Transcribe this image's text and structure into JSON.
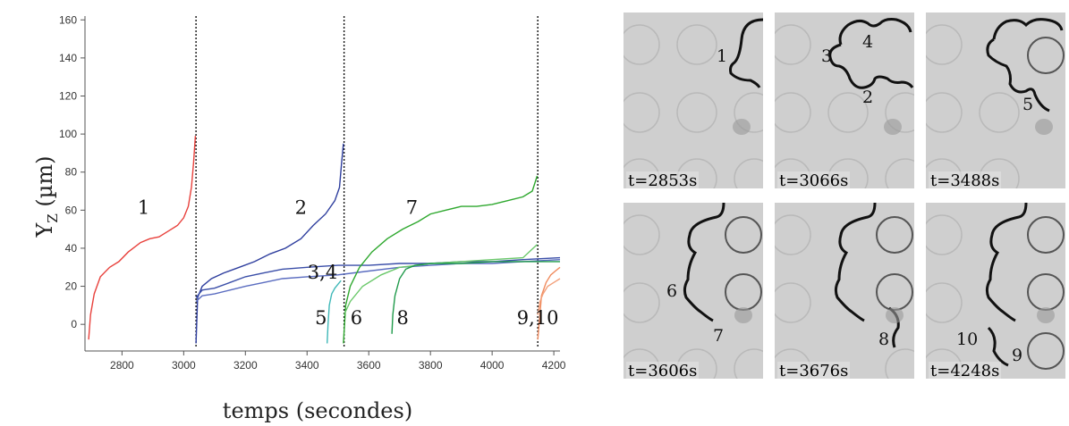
{
  "chart_data": {
    "type": "line",
    "xlabel": "temps (secondes)",
    "ylabel": "Y",
    "ylabel_sub": "Z",
    "ylabel_unit": "(µm)",
    "xlim": [
      2680,
      4220
    ],
    "ylim": [
      -14,
      162
    ],
    "xticks": [
      2800,
      3000,
      3200,
      3400,
      3600,
      3800,
      4000,
      4200
    ],
    "yticks": [
      0,
      20,
      40,
      60,
      80,
      100,
      120,
      140,
      160
    ],
    "grid": false,
    "vlines": [
      3040,
      3520,
      4148
    ],
    "series": [
      {
        "color": "#e8413c",
        "x": [
          2692,
          2698,
          2710,
          2730,
          2760,
          2790,
          2820,
          2860,
          2890,
          2920,
          2950,
          2980,
          3000,
          3015,
          3025,
          3032,
          3038
        ],
        "y": [
          -8,
          5,
          16,
          25,
          30,
          33,
          38,
          43,
          45,
          46,
          49,
          52,
          56,
          62,
          72,
          85,
          99
        ]
      },
      {
        "color": "#2e3e9e",
        "x": [
          3040,
          3045,
          3060,
          3090,
          3130,
          3180,
          3230,
          3280,
          3330,
          3380,
          3420,
          3460,
          3490,
          3505,
          3512,
          3518
        ],
        "y": [
          -10,
          14,
          20,
          24,
          27,
          30,
          33,
          37,
          40,
          45,
          52,
          58,
          65,
          72,
          85,
          95
        ]
      },
      {
        "color": "#3a4ea8",
        "x": [
          3040,
          3060,
          3100,
          3150,
          3200,
          3260,
          3320,
          3400,
          3500,
          3600,
          3700,
          3800,
          3900,
          4000,
          4100,
          4220
        ],
        "y": [
          14,
          18,
          19,
          22,
          25,
          27,
          29,
          30,
          31,
          31,
          32,
          32,
          33,
          33,
          34,
          35
        ]
      },
      {
        "color": "#5a6cc0",
        "x": [
          3040,
          3060,
          3100,
          3150,
          3200,
          3260,
          3320,
          3400,
          3500,
          3600,
          3700,
          3800,
          3900,
          4000,
          4100,
          4220
        ],
        "y": [
          12,
          15,
          16,
          18,
          20,
          22,
          24,
          25,
          26,
          28,
          30,
          31,
          32,
          32,
          33,
          34
        ]
      },
      {
        "color": "#3fb8b8",
        "x": [
          3465,
          3468,
          3472,
          3480,
          3490,
          3500,
          3510
        ],
        "y": [
          -10,
          0,
          10,
          16,
          19,
          21,
          23
        ]
      },
      {
        "color": "#2ea82e",
        "x": [
          3518,
          3525,
          3540,
          3570,
          3610,
          3660,
          3710,
          3760,
          3800,
          3850,
          3900,
          3950,
          4000,
          4050,
          4100,
          4130,
          4146
        ],
        "y": [
          -10,
          10,
          20,
          30,
          38,
          45,
          50,
          54,
          58,
          60,
          62,
          62,
          63,
          65,
          67,
          70,
          78
        ]
      },
      {
        "color": "#6ac86a",
        "x": [
          3520,
          3540,
          3580,
          3640,
          3700,
          3760,
          3800,
          3900,
          4000,
          4100,
          4146
        ],
        "y": [
          5,
          12,
          20,
          26,
          30,
          31,
          32,
          33,
          34,
          35,
          42
        ]
      },
      {
        "color": "#1f9a4a",
        "x": [
          3675,
          3678,
          3685,
          3700,
          3720,
          3750,
          3800,
          3900,
          4000,
          4100,
          4220
        ],
        "y": [
          -5,
          5,
          15,
          24,
          29,
          31,
          32,
          32,
          33,
          33,
          33
        ]
      },
      {
        "color": "#f08a5d",
        "x": [
          4148,
          4152,
          4160,
          4175,
          4190,
          4205,
          4220
        ],
        "y": [
          -8,
          0,
          15,
          22,
          26,
          28,
          30
        ]
      },
      {
        "color": "#f3a07a",
        "x": [
          4148,
          4155,
          4165,
          4180,
          4200,
          4220
        ],
        "y": [
          5,
          12,
          16,
          20,
          22,
          24
        ]
      }
    ],
    "annotations": [
      {
        "text": "1",
        "x": 2870,
        "y": 58
      },
      {
        "text": "2",
        "x": 3380,
        "y": 58
      },
      {
        "text": "7",
        "x": 3740,
        "y": 58
      },
      {
        "text": "3,4",
        "x": 3450,
        "y": 24
      },
      {
        "text": "5",
        "x": 3445,
        "y": 0
      },
      {
        "text": "6",
        "x": 3560,
        "y": 0
      },
      {
        "text": "8",
        "x": 3710,
        "y": 0
      },
      {
        "text": "9,10",
        "x": 4148,
        "y": 0
      }
    ]
  },
  "panels": [
    {
      "time": "t=2853s",
      "labels": [
        "1"
      ]
    },
    {
      "time": "t=3066s",
      "labels": [
        "3",
        "4",
        "2"
      ]
    },
    {
      "time": "t=3488s",
      "labels": [
        "5"
      ]
    },
    {
      "time": "t=3606s",
      "labels": [
        "6",
        "7"
      ]
    },
    {
      "time": "t=3676s",
      "labels": [
        "8"
      ]
    },
    {
      "time": "t=4248s",
      "labels": [
        "10",
        "9"
      ]
    }
  ]
}
